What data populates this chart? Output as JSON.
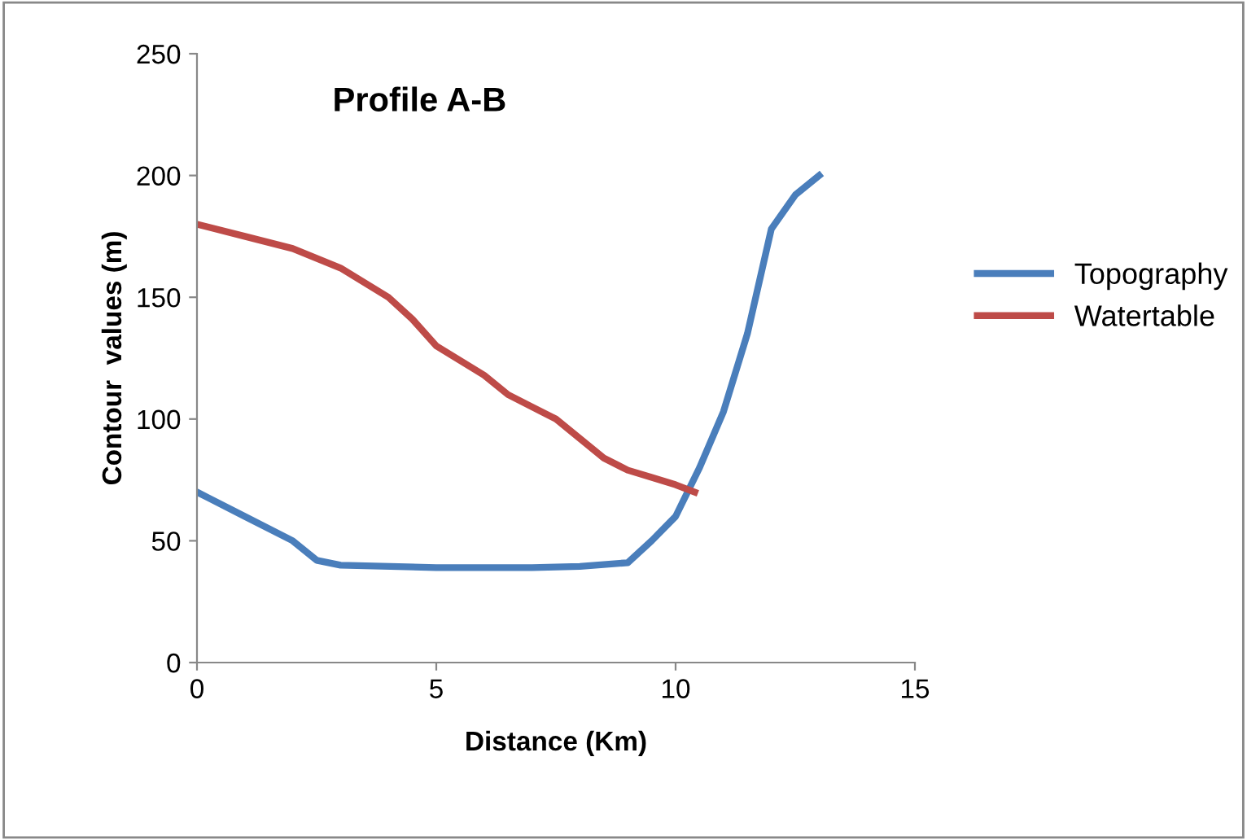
{
  "chart_data": {
    "type": "line",
    "title": "Profile A-B",
    "xlabel": "Distance (Km)",
    "ylabel": "Contour  values (m)",
    "xlim": [
      0,
      15
    ],
    "xticks": [
      0,
      5,
      10,
      15
    ],
    "ylim": [
      0,
      250
    ],
    "yticks": [
      0,
      50,
      100,
      150,
      200,
      250
    ],
    "grid": false,
    "legend": "right",
    "marker": "none",
    "line_style": "solid",
    "series": [
      {
        "name": "Topography",
        "color": "#4a7ebb",
        "x": [
          0,
          1,
          2,
          2.5,
          3,
          5,
          7,
          8,
          9,
          9.5,
          10,
          10.5,
          11,
          11.5,
          12,
          12.5,
          13
        ],
        "values": [
          70,
          60,
          50,
          42,
          40,
          39,
          39,
          39.5,
          41,
          50,
          60,
          80,
          103,
          135,
          178,
          192,
          200
        ]
      },
      {
        "name": "Watertable",
        "color": "#be4b48",
        "x": [
          0,
          1,
          2,
          3,
          4,
          4.5,
          5,
          5.5,
          6,
          6.5,
          7,
          7.5,
          8,
          8.5,
          9,
          9.5,
          10,
          10.4
        ],
        "values": [
          180,
          175,
          170,
          162,
          150,
          141,
          130,
          124,
          118,
          110,
          105,
          100,
          92,
          84,
          79,
          76,
          73,
          70
        ]
      }
    ]
  }
}
